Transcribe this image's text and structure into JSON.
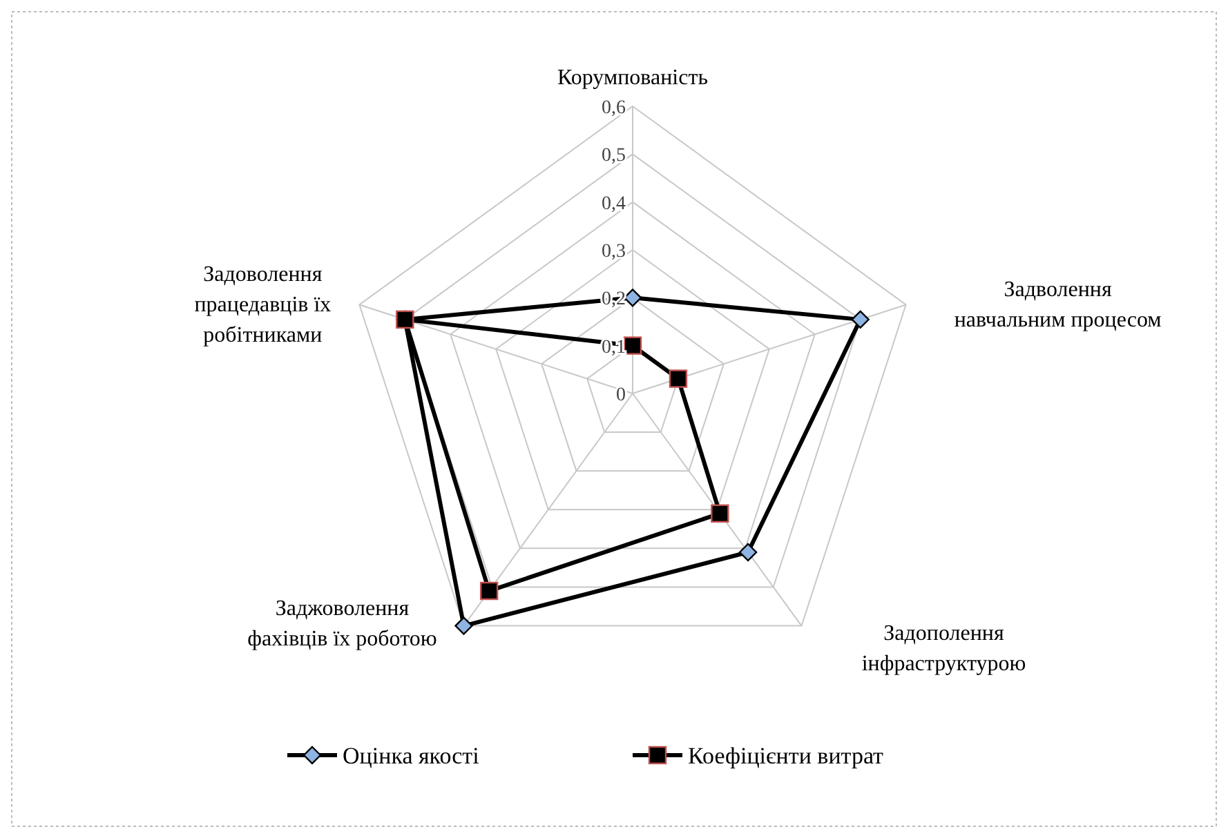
{
  "chart_data": {
    "type": "radar",
    "categories": [
      "Корумпованість",
      "Задволення навчальним процесом",
      "Задополення інфраструктурою",
      "Заджоволення фахівців їх роботою",
      "Задоволення працедавців їх робітниками"
    ],
    "series": [
      {
        "name": "Оцінка якості",
        "color": "#000000",
        "marker": "diamond",
        "values": [
          0.2,
          0.5,
          0.41,
          0.6,
          0.5
        ]
      },
      {
        "name": "Коефіцієнти витрат",
        "color": "#000000",
        "marker": "square",
        "values": [
          0.1,
          0.1,
          0.31,
          0.51,
          0.5
        ]
      }
    ],
    "ylim": [
      0,
      0.6
    ],
    "yticks": [
      {
        "value": 0,
        "label": "0"
      },
      {
        "value": 0.1,
        "label": "0,1"
      },
      {
        "value": 0.2,
        "label": "0,2"
      },
      {
        "value": 0.3,
        "label": "0,3"
      },
      {
        "value": 0.4,
        "label": "0,4"
      },
      {
        "value": 0.5,
        "label": "0,5"
      },
      {
        "value": 0.6,
        "label": "0,6"
      }
    ],
    "grid": true,
    "legend": "bottom"
  }
}
